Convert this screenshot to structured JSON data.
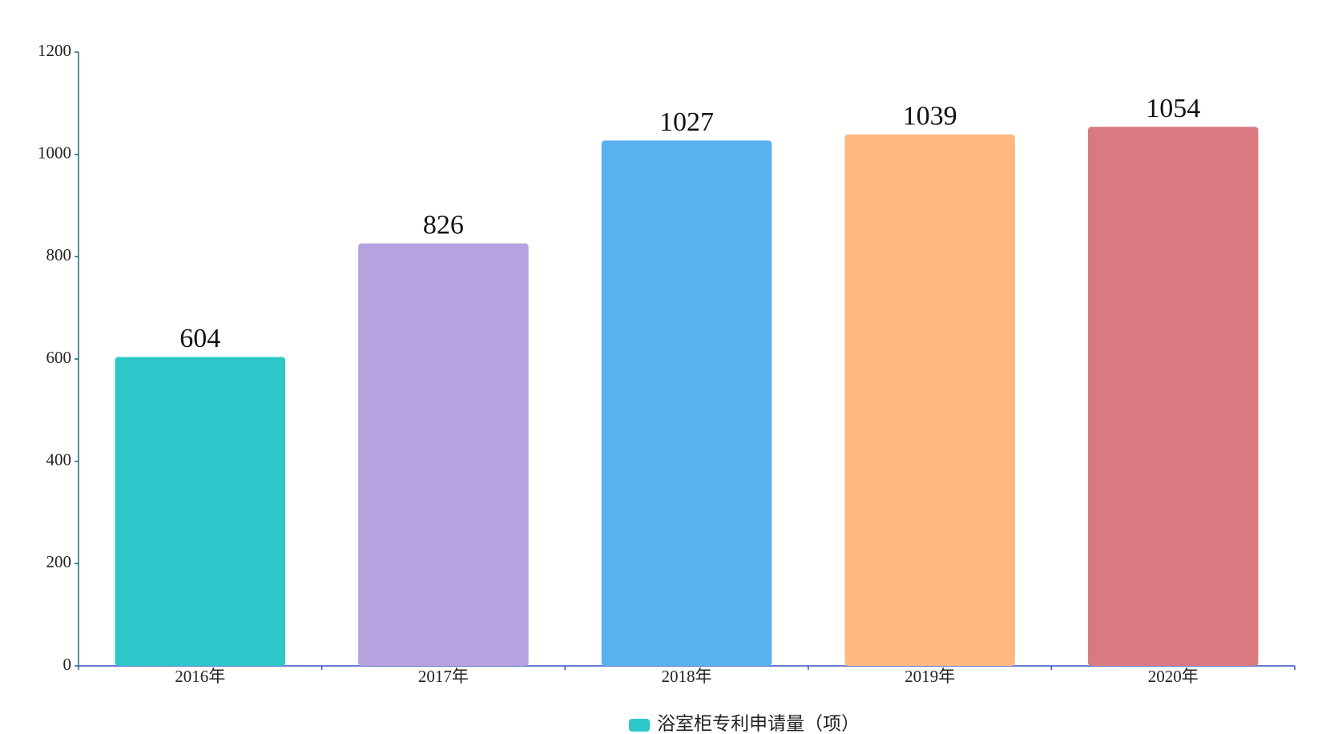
{
  "chart_data": {
    "type": "bar",
    "categories": [
      "2016年",
      "2017年",
      "2018年",
      "2019年",
      "2020年"
    ],
    "series": [
      {
        "name": "浴室柜专利申请量（项）",
        "color": "#2ec7c9",
        "values": [
          604,
          826,
          1027,
          1039,
          1054
        ]
      }
    ],
    "bar_colors": [
      "#2ec7c9",
      "#b6a2de",
      "#5ab1ef",
      "#ffb980",
      "#d87a80"
    ],
    "ylim": [
      0,
      1200
    ],
    "yticks": [
      0,
      200,
      400,
      600,
      800,
      1000,
      1200
    ],
    "grid": false
  }
}
